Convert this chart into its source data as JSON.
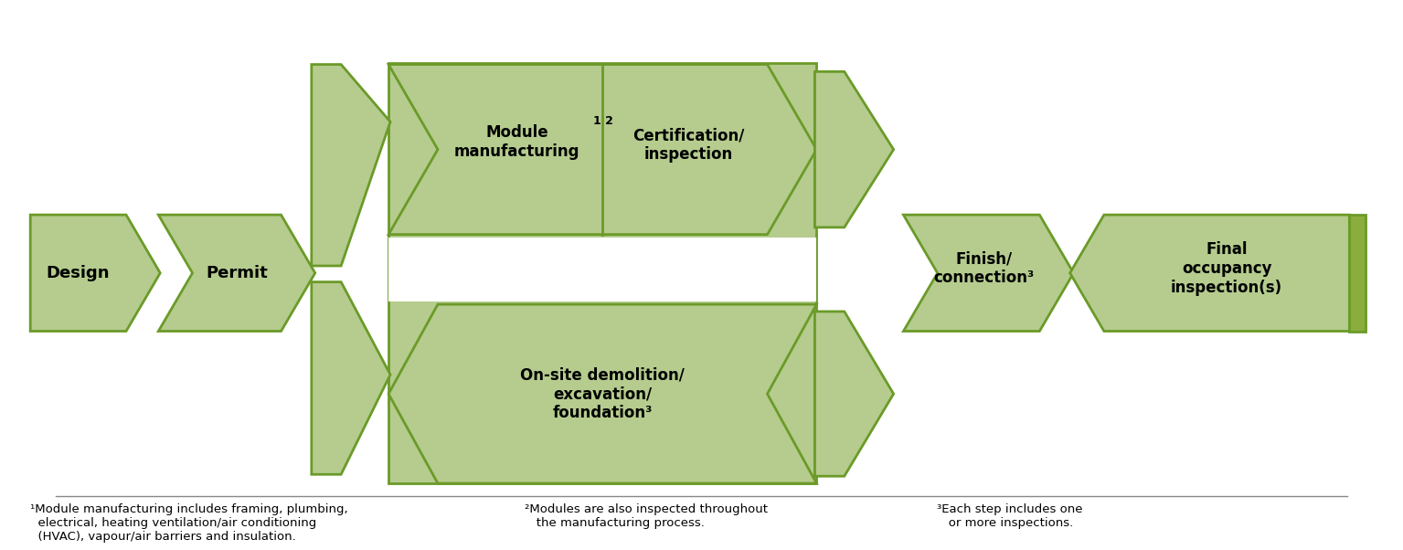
{
  "bg_color": "#ffffff",
  "light_green": "#b5cc8e",
  "mid_green": "#8aad3e",
  "edge_color": "#6b9a28",
  "dark_strip": "#6b9a28",
  "text_color": "#000000",
  "fig_width": 15.35,
  "fig_height": 6.02,
  "footnote1": "¹Module manufacturing includes framing, plumbing,\n  electrical, heating ventilation/air conditioning\n  (HVAC), vapour/air barriers and insulation.",
  "footnote2": "²Modules are also inspected throughout\n   the manufacturing process.",
  "footnote3": "³Each step includes one\n   or more inspections."
}
